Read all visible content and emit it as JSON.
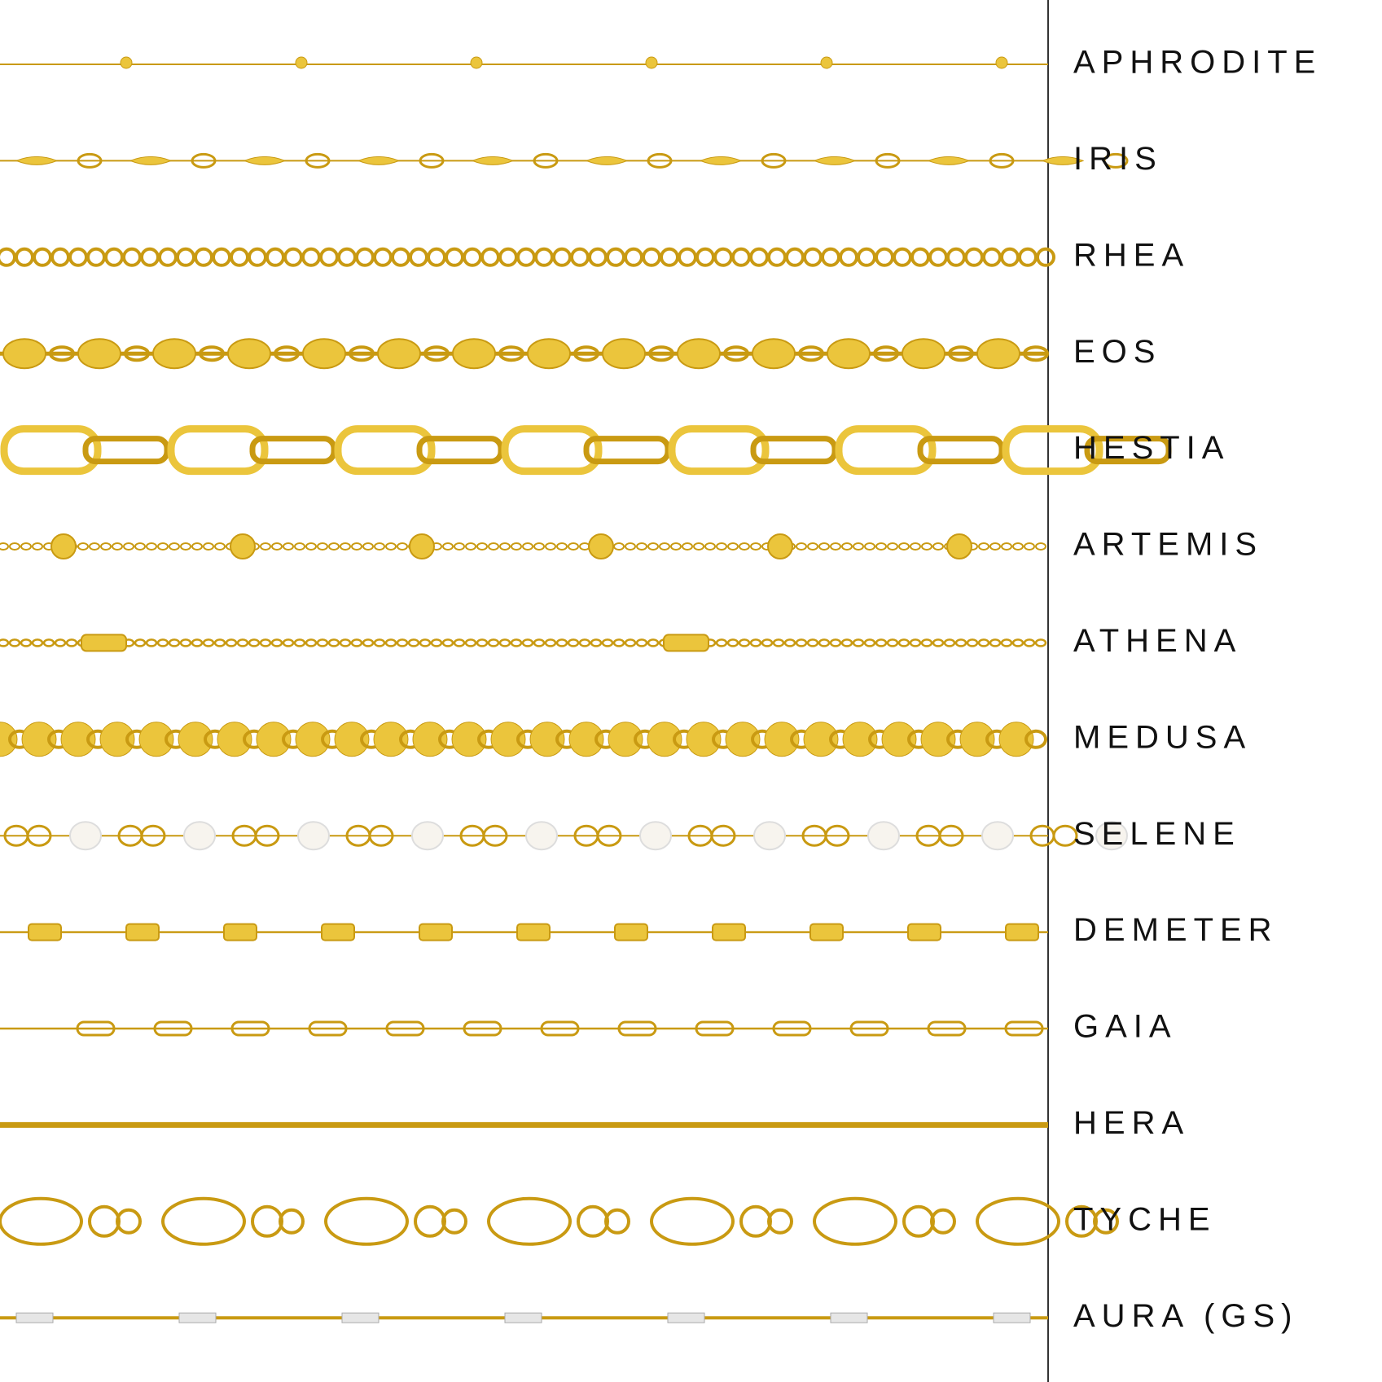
{
  "chains": [
    {
      "name": "APHRODITE"
    },
    {
      "name": "IRIS"
    },
    {
      "name": "RHEA"
    },
    {
      "name": "EOS"
    },
    {
      "name": "HESTIA"
    },
    {
      "name": "ARTEMIS"
    },
    {
      "name": "ATHENA"
    },
    {
      "name": "MEDUSA"
    },
    {
      "name": "SELENE"
    },
    {
      "name": "DEMETER"
    },
    {
      "name": "GAIA"
    },
    {
      "name": "HERA"
    },
    {
      "name": "TYCHE"
    },
    {
      "name": "AURA (GS)"
    }
  ]
}
